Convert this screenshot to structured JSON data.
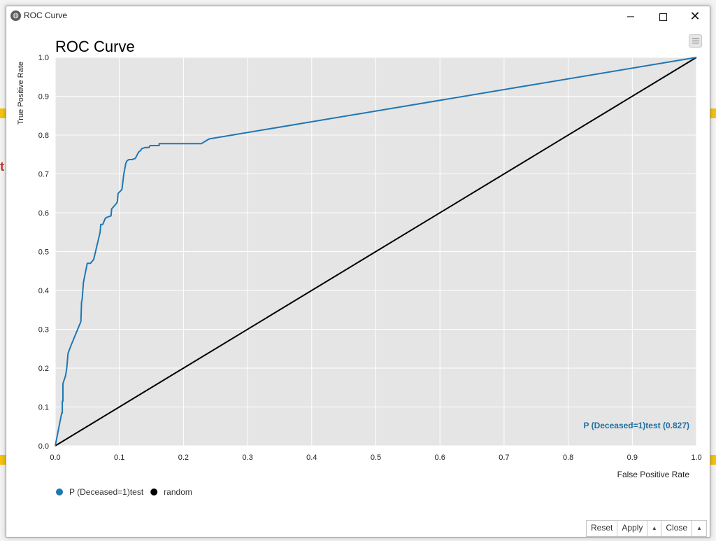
{
  "window": {
    "title": "ROC Curve",
    "icon": "globe-icon",
    "controls": {
      "minimize": "─",
      "close": "✕"
    }
  },
  "background": {
    "partial_text": "t"
  },
  "menu": {
    "icon": "hamburger-icon"
  },
  "chart_data": {
    "type": "line",
    "title": "ROC Curve",
    "xlabel": "False Positive Rate",
    "ylabel": "True Positive Rate",
    "xlim": [
      0,
      1
    ],
    "ylim": [
      0,
      1
    ],
    "xticks": [
      "0.0",
      "0.1",
      "0.2",
      "0.3",
      "0.4",
      "0.5",
      "0.6",
      "0.7",
      "0.8",
      "0.9",
      "1.0"
    ],
    "yticks": [
      "0.0",
      "0.1",
      "0.2",
      "0.3",
      "0.4",
      "0.5",
      "0.6",
      "0.7",
      "0.8",
      "0.9",
      "1.0"
    ],
    "grid": true,
    "background": "#e5e5e5",
    "legend_position": "bottom-left",
    "annotation": "P (Deceased=1)test (0.827)",
    "series": [
      {
        "name": "P (Deceased=1)test",
        "color": "#1f77b4",
        "x": [
          0,
          0.01,
          0.011,
          0.011,
          0.012,
          0.012,
          0.016,
          0.018,
          0.02,
          0.025,
          0.04,
          0.041,
          0.042,
          0.044,
          0.045,
          0.05,
          0.055,
          0.06,
          0.07,
          0.071,
          0.072,
          0.074,
          0.078,
          0.08,
          0.087,
          0.088,
          0.096,
          0.097,
          0.098,
          0.1,
          0.104,
          0.107,
          0.11,
          0.112,
          0.115,
          0.12,
          0.125,
          0.128,
          0.13,
          0.133,
          0.135,
          0.14,
          0.146,
          0.148,
          0.162,
          0.162,
          0.228,
          0.24,
          1
        ],
        "y": [
          0,
          0.084,
          0.084,
          0.115,
          0.115,
          0.16,
          0.18,
          0.2,
          0.238,
          0.26,
          0.32,
          0.37,
          0.377,
          0.42,
          0.43,
          0.47,
          0.47,
          0.48,
          0.55,
          0.57,
          0.57,
          0.57,
          0.585,
          0.588,
          0.592,
          0.61,
          0.625,
          0.63,
          0.65,
          0.653,
          0.66,
          0.7,
          0.727,
          0.734,
          0.737,
          0.737,
          0.74,
          0.75,
          0.756,
          0.76,
          0.765,
          0.768,
          0.768,
          0.773,
          0.773,
          0.778,
          0.778,
          0.79,
          1
        ]
      },
      {
        "name": "random",
        "color": "#000000",
        "x": [
          0,
          1
        ],
        "y": [
          0,
          1
        ]
      }
    ]
  },
  "buttons": {
    "reset": "Reset",
    "apply": "Apply",
    "close": "Close",
    "arrow": "▲"
  }
}
